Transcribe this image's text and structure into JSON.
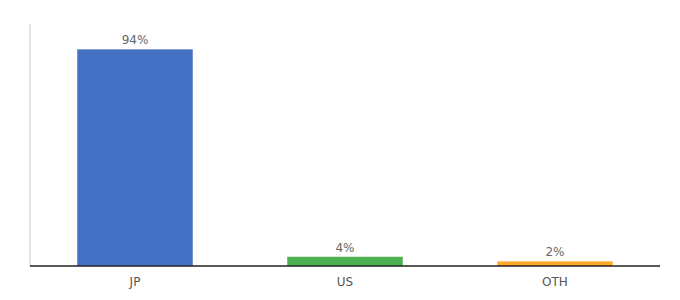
{
  "chart_data": {
    "type": "bar",
    "categories": [
      "JP",
      "US",
      "OTH"
    ],
    "values": [
      94,
      4,
      2
    ],
    "value_labels": [
      "94%",
      "4%",
      "2%"
    ],
    "colors": [
      "#4472c4",
      "#4caf50",
      "#ffa726"
    ],
    "ylim": [
      0,
      105
    ],
    "data_labels": true,
    "tick_labels": "x",
    "grid": false
  }
}
